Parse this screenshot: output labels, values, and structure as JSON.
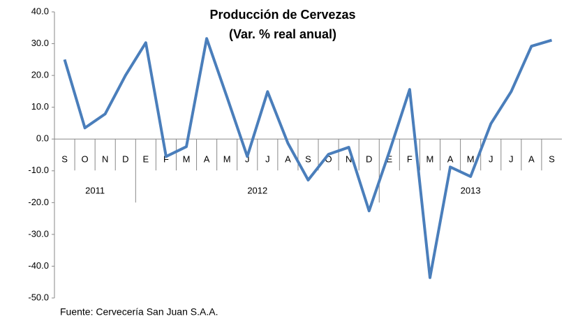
{
  "chart_data": {
    "type": "line",
    "title": "Producción de Cervezas",
    "subtitle": "(Var. % real anual)",
    "note": "Fuente: Cervecería San Juan S.A.A.",
    "category_groups": [
      {
        "label": "2011",
        "categories": [
          "S",
          "O",
          "N",
          "D"
        ]
      },
      {
        "label": "2012",
        "categories": [
          "E",
          "F",
          "M",
          "A",
          "M",
          "J",
          "J",
          "A",
          "S",
          "O",
          "N",
          "D"
        ]
      },
      {
        "label": "2013",
        "categories": [
          "E",
          "F",
          "M",
          "A",
          "M",
          "J",
          "J",
          "A",
          "S"
        ]
      }
    ],
    "series": [
      {
        "color": "#4a7ebb",
        "values": [
          25.0,
          3.5,
          7.9,
          20.0,
          30.3,
          -5.5,
          -2.4,
          31.6,
          13.2,
          -5.5,
          14.9,
          -1.3,
          -12.9,
          -4.8,
          -2.6,
          -22.6,
          -4.0,
          15.6,
          -43.6,
          -8.8,
          -11.8,
          4.8,
          14.9,
          29.2,
          31.1
        ]
      }
    ],
    "ylim": [
      -50,
      40
    ],
    "yticks": [
      {
        "value": -50,
        "label": "-50.0"
      },
      {
        "value": -40,
        "label": "-40.0"
      },
      {
        "value": -30,
        "label": "-30.0"
      },
      {
        "value": -20,
        "label": "-20.0"
      },
      {
        "value": -10,
        "label": "-10.0"
      },
      {
        "value": 0,
        "label": "0.0"
      },
      {
        "value": 10,
        "label": "10.0"
      },
      {
        "value": 20,
        "label": "20.0"
      },
      {
        "value": 30,
        "label": "30.0"
      },
      {
        "value": 40,
        "label": "40.0"
      }
    ],
    "grid": false
  }
}
